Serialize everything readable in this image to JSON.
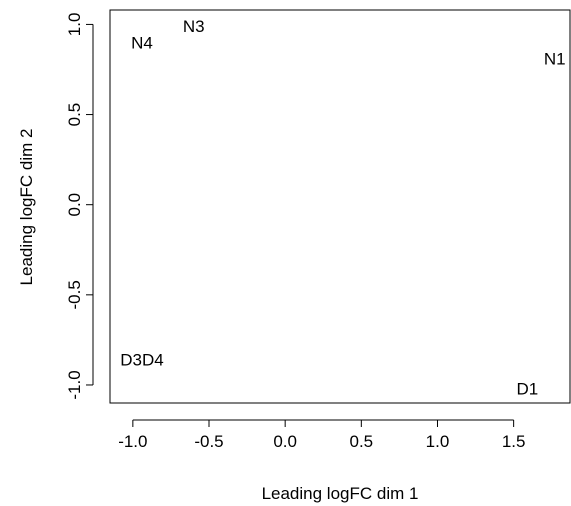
{
  "chart_data": {
    "type": "scatter",
    "title": "",
    "xlabel": "Leading logFC dim 1",
    "ylabel": "Leading logFC dim 2",
    "xlim": [
      -1.15,
      1.87
    ],
    "ylim": [
      -1.1,
      1.08
    ],
    "x_ticks": [
      {
        "value": -1.0,
        "label": "-1.0"
      },
      {
        "value": -0.5,
        "label": "-0.5"
      },
      {
        "value": 0.0,
        "label": "0.0"
      },
      {
        "value": 0.5,
        "label": "0.5"
      },
      {
        "value": 1.0,
        "label": "1.0"
      },
      {
        "value": 1.5,
        "label": "1.5"
      }
    ],
    "y_ticks": [
      {
        "value": -1.0,
        "label": "-1.0"
      },
      {
        "value": -0.5,
        "label": "-0.5"
      },
      {
        "value": 0.0,
        "label": "0.0"
      },
      {
        "value": 0.5,
        "label": "0.5"
      },
      {
        "value": 1.0,
        "label": "1.0"
      }
    ],
    "grid": false,
    "points": [
      {
        "label": "N3",
        "x": -0.6,
        "y": 0.99
      },
      {
        "label": "N4",
        "x": -0.94,
        "y": 0.9
      },
      {
        "label": "N1",
        "x": 1.77,
        "y": 0.81
      },
      {
        "label": "D3D4",
        "x": -0.94,
        "y": -0.86
      },
      {
        "label": "D1",
        "x": 1.59,
        "y": -1.02
      }
    ]
  }
}
